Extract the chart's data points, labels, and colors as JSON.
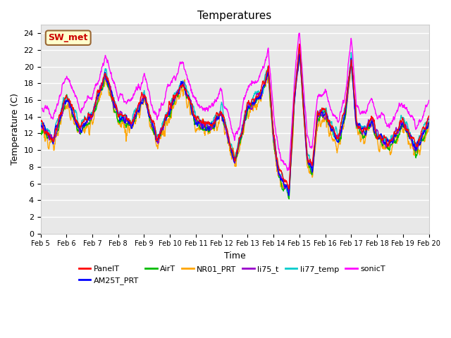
{
  "title": "Temperatures",
  "ylabel": "Temperature (C)",
  "xlabel": "Time",
  "ylim": [
    0,
    25
  ],
  "yticks": [
    0,
    2,
    4,
    6,
    8,
    10,
    12,
    14,
    16,
    18,
    20,
    22,
    24
  ],
  "xtick_labels": [
    "Feb 5",
    "Feb 6",
    "Feb 7",
    "Feb 8",
    "Feb 9",
    "Feb 10",
    "Feb 11",
    "Feb 12",
    "Feb 13",
    "Feb 14",
    "Feb 15",
    "Feb 16",
    "Feb 17",
    "Feb 18",
    "Feb 19",
    "Feb 20"
  ],
  "annotation_text": "SW_met",
  "annotation_bg": "#FFFFCC",
  "annotation_edge": "#996633",
  "series_colors": {
    "PanelT": "#FF0000",
    "AM25T_PRT": "#0000FF",
    "AirT": "#00BB00",
    "NR01_PRT": "#FFA500",
    "li75_t": "#9900CC",
    "li77_temp": "#00CCCC",
    "sonicT": "#FF00FF"
  },
  "bg_color": "#E8E8E8",
  "fig_bg": "#FFFFFF",
  "grid_color": "#FFFFFF",
  "linewidth": 1.0
}
